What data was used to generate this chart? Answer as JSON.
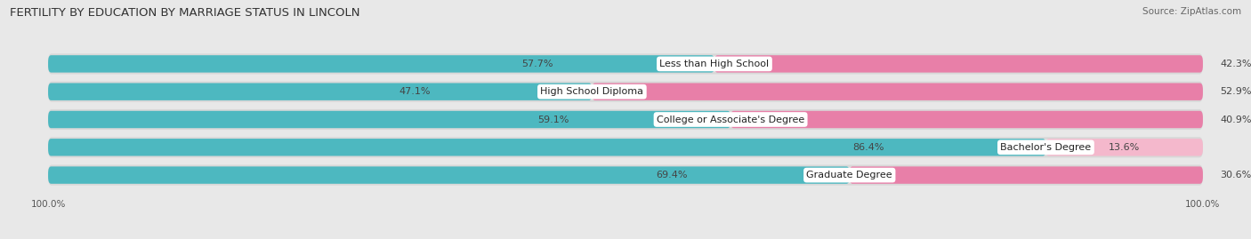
{
  "title": "FERTILITY BY EDUCATION BY MARRIAGE STATUS IN LINCOLN",
  "source": "Source: ZipAtlas.com",
  "categories": [
    "Less than High School",
    "High School Diploma",
    "College or Associate's Degree",
    "Bachelor's Degree",
    "Graduate Degree"
  ],
  "married": [
    57.7,
    47.1,
    59.1,
    86.4,
    69.4
  ],
  "unmarried": [
    42.3,
    52.9,
    40.9,
    13.6,
    30.6
  ],
  "married_color": "#4db8c0",
  "unmarried_color_dark": "#e87fa8",
  "unmarried_color_light": "#f4b8cc",
  "bg_color": "#e8e8e8",
  "row_bg_color": "#d8d8d8",
  "title_fontsize": 9.5,
  "label_fontsize": 8,
  "category_fontsize": 8,
  "legend_fontsize": 8,
  "source_fontsize": 7.5
}
